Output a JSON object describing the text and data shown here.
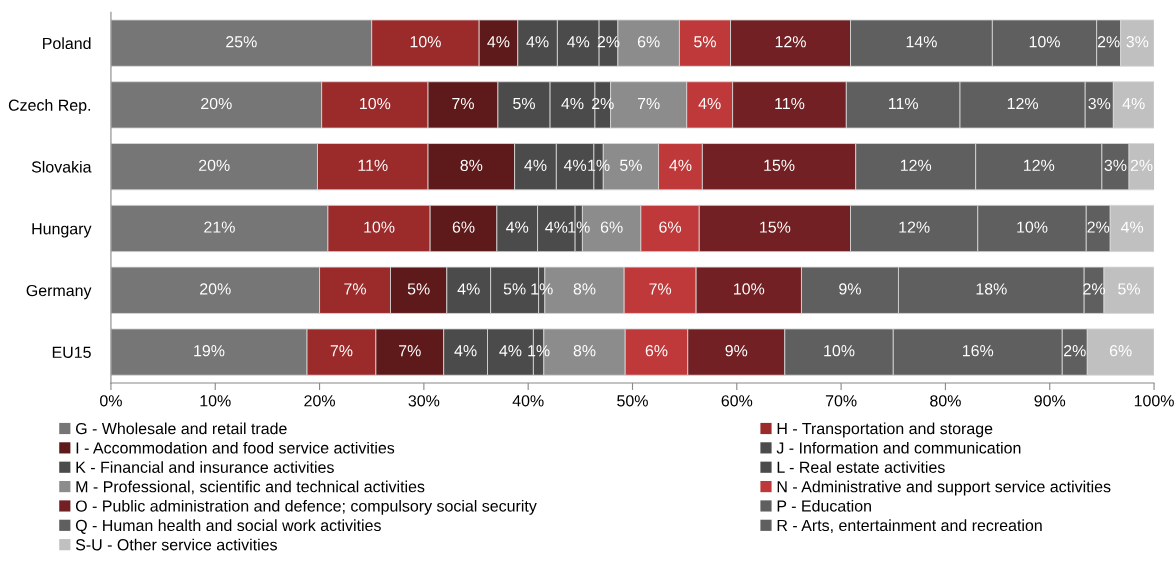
{
  "chart_data": {
    "type": "bar",
    "orientation": "horizontal",
    "stacked": true,
    "legend": "bottom",
    "grid": false,
    "categories": [
      "Poland",
      "Czech Rep.",
      "Slovakia",
      "Hungary",
      "Germany",
      "EU15"
    ],
    "xlim": [
      0,
      100
    ],
    "xticks": [
      {
        "value": 0,
        "label": "0%"
      },
      {
        "value": 10,
        "label": "10%"
      },
      {
        "value": 20,
        "label": "20%"
      },
      {
        "value": 30,
        "label": "30%"
      },
      {
        "value": 40,
        "label": "40%"
      },
      {
        "value": 50,
        "label": "50%"
      },
      {
        "value": 60,
        "label": "60%"
      },
      {
        "value": 70,
        "label": "70%"
      },
      {
        "value": 80,
        "label": "80%"
      },
      {
        "value": 90,
        "label": "90%"
      },
      {
        "value": 100,
        "label": "100%"
      }
    ],
    "series": [
      {
        "name": "G - Wholesale and retail trade",
        "color": "#767676",
        "values": [
          25.0,
          20.2,
          19.8,
          20.8,
          20.0,
          18.8
        ],
        "value_labels": [
          "25%",
          "20%",
          "20%",
          "21%",
          "20%",
          "19%"
        ]
      },
      {
        "name": "H - Transportation and storage",
        "color": "#9b2a2b",
        "values": [
          10.3,
          10.2,
          10.6,
          9.8,
          6.8,
          6.6
        ],
        "value_labels": [
          "10%",
          "10%",
          "11%",
          "10%",
          "7%",
          "7%"
        ]
      },
      {
        "name": "I - Accommodation and food service activities",
        "color": "#5e1a1a",
        "values": [
          3.7,
          6.7,
          8.3,
          6.4,
          5.4,
          6.5
        ],
        "value_labels": [
          "4%",
          "7%",
          "8%",
          "6%",
          "5%",
          "7%"
        ]
      },
      {
        "name": "J - Information and communication",
        "color": "#4b4b4b",
        "values": [
          3.8,
          5.0,
          4.0,
          3.9,
          4.2,
          4.2
        ],
        "value_labels": [
          "4%",
          "5%",
          "4%",
          "4%",
          "4%",
          "4%"
        ]
      },
      {
        "name": "K - Financial and insurance activities",
        "color": "#4b4b4b",
        "values": [
          4.0,
          4.3,
          3.6,
          3.6,
          4.6,
          4.4
        ],
        "value_labels": [
          "4%",
          "4%",
          "4%",
          "4%",
          "5%",
          "4%"
        ]
      },
      {
        "name": "L - Real estate activities",
        "color": "#4b4b4b",
        "values": [
          1.8,
          1.5,
          0.9,
          0.7,
          0.6,
          1.0
        ],
        "value_labels": [
          "2%",
          "2%",
          "1%",
          "1%",
          "1%",
          "1%"
        ]
      },
      {
        "name": "M - Professional, scientific and technical activities",
        "color": "#8c8c8c",
        "values": [
          5.9,
          7.3,
          5.3,
          5.6,
          7.6,
          7.8
        ],
        "value_labels": [
          "6%",
          "7%",
          "5%",
          "6%",
          "8%",
          "8%"
        ]
      },
      {
        "name": "N - Administrative and support service activities",
        "color": "#c0393a",
        "values": [
          4.9,
          4.4,
          4.2,
          5.6,
          6.9,
          6.0
        ],
        "value_labels": [
          "5%",
          "4%",
          "4%",
          "6%",
          "7%",
          "6%"
        ]
      },
      {
        "name": "O - Public administration and defence; compulsory social security",
        "color": "#722023",
        "values": [
          11.5,
          10.9,
          14.7,
          14.5,
          10.1,
          9.3
        ],
        "value_labels": [
          "12%",
          "11%",
          "15%",
          "15%",
          "10%",
          "9%"
        ]
      },
      {
        "name": "P - Education",
        "color": "#5f5f5f",
        "values": [
          13.6,
          10.9,
          11.5,
          12.2,
          9.3,
          10.4
        ],
        "value_labels": [
          "14%",
          "11%",
          "12%",
          "12%",
          "9%",
          "10%"
        ]
      },
      {
        "name": "Q - Human health and social work activities",
        "color": "#5f5f5f",
        "values": [
          10.0,
          12.0,
          12.1,
          10.4,
          17.8,
          16.2
        ],
        "value_labels": [
          "10%",
          "12%",
          "12%",
          "10%",
          "18%",
          "16%"
        ]
      },
      {
        "name": "R - Arts, entertainment and recreation",
        "color": "#5f5f5f",
        "values": [
          2.3,
          2.7,
          2.6,
          2.3,
          1.9,
          2.4
        ],
        "value_labels": [
          "2%",
          "3%",
          "3%",
          "2%",
          "2%",
          "2%"
        ]
      },
      {
        "name": "S-U - Other service activities",
        "color": "#c0c0c0",
        "values": [
          3.2,
          3.9,
          2.5,
          4.2,
          4.8,
          6.4
        ],
        "value_labels": [
          "3%",
          "4%",
          "2%",
          "4%",
          "5%",
          "6%"
        ]
      }
    ]
  }
}
